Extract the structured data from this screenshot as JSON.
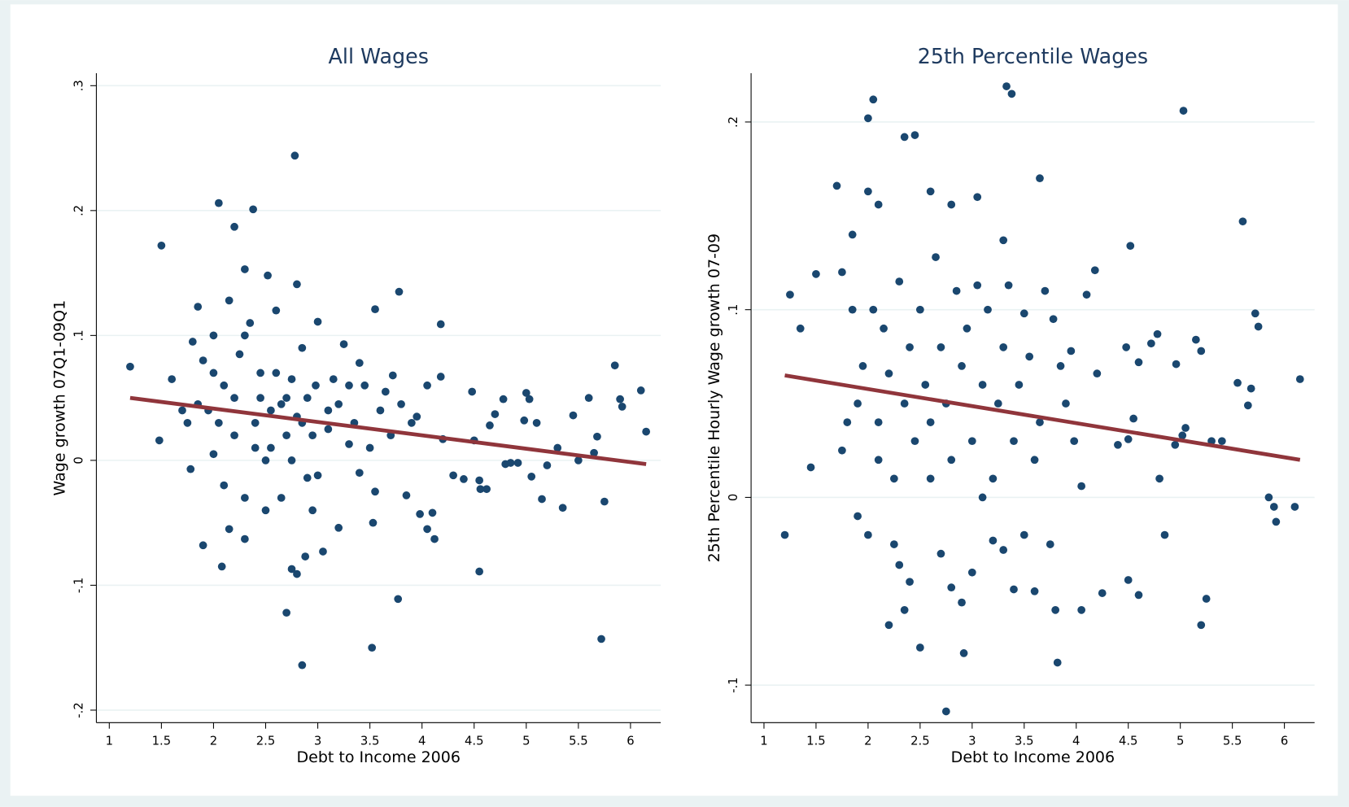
{
  "chart_data": [
    {
      "type": "scatter",
      "title": "All Wages",
      "xlabel": "Debt to Income 2006",
      "ylabel": "Wage growth 07Q1-09Q1",
      "xlim": [
        0.876,
        6.29
      ],
      "ylim": [
        -0.21,
        0.31
      ],
      "xticks": [
        1,
        1.5,
        2,
        2.5,
        3,
        3.5,
        4,
        4.5,
        5,
        5.5,
        6
      ],
      "yticks": [
        {
          "value": -0.2,
          "label": "-.2"
        },
        {
          "value": -0.1,
          "label": "-.1"
        },
        0,
        {
          "value": 0.1,
          "label": ".1"
        },
        {
          "value": 0.2,
          "label": ".2"
        },
        {
          "value": 0.3,
          "label": ".3"
        }
      ],
      "grid": true,
      "series": [
        {
          "type": "scatter",
          "color": "#1a476f",
          "x": [
            1.2,
            1.5,
            1.48,
            1.6,
            2.05,
            2.38,
            2.2,
            2.78,
            2.3,
            2.52,
            2.8,
            1.85,
            2.15,
            3.55,
            3.78,
            4.18,
            1.9,
            2.08,
            2.7,
            2.85,
            3.52,
            5.72,
            4.55,
            2.8,
            2.75,
            2.88,
            3.77,
            5.85,
            6.1,
            6.15,
            5.9,
            5.92,
            5.75,
            5.6,
            5.68,
            5.65,
            5.5,
            5.45,
            5.3,
            5.35,
            5.15,
            5.1,
            5.05,
            5.2,
            4.98,
            5.0,
            5.03,
            4.8,
            4.85,
            4.92,
            4.78,
            4.65,
            4.7,
            4.62,
            4.55,
            4.5,
            4.48,
            4.56,
            4.4,
            4.3,
            4.2,
            4.12,
            4.1,
            4.05,
            3.98,
            4.18,
            4.05,
            3.95,
            3.9,
            3.85,
            3.72,
            3.65,
            3.6,
            3.55,
            3.53,
            3.45,
            3.4,
            3.35,
            3.3,
            3.25,
            3.2,
            3.15,
            3.1,
            3.05,
            3.0,
            2.98,
            2.95,
            2.9,
            2.85,
            2.8,
            2.75,
            2.7,
            2.65,
            2.6,
            2.55,
            2.5,
            2.45,
            2.4,
            2.35,
            2.3,
            2.25,
            2.2,
            2.15,
            2.1,
            2.05,
            2.0,
            1.95,
            1.9,
            1.85,
            1.8,
            1.75,
            1.7,
            1.78,
            2.0,
            2.1,
            2.3,
            2.5,
            2.6,
            2.7,
            2.9,
            3.0,
            3.1,
            3.2,
            3.3,
            3.5,
            3.7,
            3.8,
            2.4,
            2.45,
            2.55,
            2.65,
            2.75,
            2.85,
            2.95,
            3.4,
            2.2,
            2.0,
            2.3
          ],
          "values": [
            0.075,
            0.172,
            0.016,
            0.065,
            0.206,
            0.201,
            0.187,
            0.244,
            0.153,
            0.148,
            0.141,
            0.123,
            0.128,
            0.121,
            0.135,
            0.109,
            -0.068,
            -0.085,
            -0.122,
            -0.164,
            -0.15,
            -0.143,
            -0.089,
            -0.091,
            -0.087,
            -0.077,
            -0.111,
            0.076,
            0.056,
            0.023,
            0.049,
            0.043,
            -0.033,
            0.05,
            0.019,
            0.006,
            0.0,
            0.036,
            0.01,
            -0.038,
            -0.031,
            0.03,
            -0.013,
            -0.004,
            0.032,
            0.054,
            0.049,
            -0.003,
            -0.002,
            -0.002,
            0.049,
            0.028,
            0.037,
            -0.023,
            -0.016,
            0.016,
            0.055,
            -0.023,
            -0.015,
            -0.012,
            0.017,
            -0.063,
            -0.042,
            -0.055,
            -0.043,
            0.067,
            0.06,
            0.035,
            0.03,
            -0.028,
            0.068,
            0.055,
            0.04,
            -0.025,
            -0.05,
            0.06,
            0.078,
            0.03,
            0.013,
            0.093,
            -0.054,
            0.065,
            0.04,
            -0.073,
            0.111,
            0.06,
            0.02,
            -0.014,
            0.09,
            0.035,
            0.0,
            0.05,
            -0.03,
            0.12,
            0.04,
            -0.04,
            0.07,
            0.01,
            0.11,
            -0.063,
            0.085,
            0.02,
            -0.055,
            0.06,
            0.03,
            0.1,
            0.04,
            0.08,
            0.045,
            0.095,
            0.03,
            0.04,
            -0.007,
            0.005,
            -0.02,
            -0.03,
            0.0,
            0.07,
            0.02,
            0.05,
            -0.012,
            0.025,
            0.045,
            0.06,
            0.01,
            0.02,
            0.045,
            0.03,
            0.05,
            0.01,
            0.045,
            0.065,
            0.03,
            -0.04,
            -0.01,
            0.05,
            0.07,
            0.1
          ]
        },
        {
          "type": "line",
          "color": "#90353b",
          "x": [
            1.2,
            6.15
          ],
          "values": [
            0.05,
            -0.003
          ]
        }
      ]
    },
    {
      "type": "scatter",
      "title": "25th Percentile Wages",
      "xlabel": "Debt to Income 2006",
      "ylabel": "25th Percentile Hourly Wage growth 07-09",
      "xlim": [
        0.876,
        6.29
      ],
      "ylim": [
        -0.12,
        0.226
      ],
      "xticks": [
        1,
        1.5,
        2,
        2.5,
        3,
        3.5,
        4,
        4.5,
        5,
        5.5,
        6
      ],
      "yticks": [
        {
          "value": -0.1,
          "label": "-.1"
        },
        0,
        {
          "value": 0.1,
          "label": ".1"
        },
        {
          "value": 0.2,
          "label": ".2"
        }
      ],
      "grid": true,
      "series": [
        {
          "type": "scatter",
          "color": "#1a476f",
          "x": [
            1.2,
            1.25,
            1.35,
            1.45,
            1.5,
            1.7,
            1.75,
            1.85,
            1.9,
            2.0,
            2.05,
            2.35,
            2.45,
            3.33,
            3.38,
            5.03,
            3.65,
            5.6,
            2.0,
            2.1,
            2.6,
            2.8,
            3.05,
            4.52,
            3.3,
            2.2,
            2.5,
            2.75,
            2.92,
            3.82,
            5.2,
            5.25,
            4.6,
            4.5,
            4.25,
            4.05,
            3.8,
            3.6,
            3.5,
            3.4,
            3.3,
            3.2,
            3.1,
            3.0,
            2.9,
            2.8,
            2.7,
            2.6,
            2.4,
            2.35,
            2.3,
            2.25,
            2.1,
            2.0,
            5.85,
            5.9,
            5.92,
            6.1,
            6.15,
            5.75,
            5.72,
            5.68,
            5.65,
            5.55,
            5.4,
            5.3,
            5.2,
            5.15,
            5.05,
            5.02,
            4.95,
            4.96,
            4.85,
            4.8,
            4.78,
            4.72,
            4.6,
            4.55,
            4.5,
            4.48,
            4.4,
            4.2,
            4.18,
            4.1,
            4.05,
            3.98,
            3.95,
            3.9,
            3.85,
            3.78,
            3.75,
            3.7,
            3.65,
            3.6,
            3.55,
            3.5,
            3.45,
            3.4,
            3.35,
            3.3,
            3.25,
            3.2,
            3.15,
            3.1,
            3.05,
            3.0,
            2.95,
            2.9,
            2.85,
            2.8,
            2.75,
            2.7,
            2.65,
            2.6,
            2.55,
            2.5,
            2.45,
            2.4,
            2.35,
            2.3,
            2.25,
            2.2,
            2.15,
            2.1,
            2.05,
            1.95,
            1.9,
            1.85,
            1.8,
            1.75
          ],
          "values": [
            -0.02,
            0.108,
            0.09,
            0.016,
            0.119,
            0.166,
            0.12,
            0.14,
            -0.01,
            0.202,
            0.212,
            0.192,
            0.193,
            0.219,
            0.215,
            0.206,
            0.17,
            0.147,
            0.163,
            0.156,
            0.163,
            0.156,
            0.16,
            0.134,
            0.137,
            -0.068,
            -0.08,
            -0.114,
            -0.083,
            -0.088,
            -0.068,
            -0.054,
            -0.052,
            -0.044,
            -0.051,
            -0.06,
            -0.06,
            -0.05,
            -0.02,
            -0.049,
            -0.028,
            -0.023,
            0.0,
            -0.04,
            -0.056,
            -0.048,
            -0.03,
            0.01,
            -0.045,
            -0.06,
            -0.036,
            -0.025,
            0.02,
            -0.02,
            0.0,
            -0.005,
            -0.013,
            -0.005,
            0.063,
            0.091,
            0.098,
            0.058,
            0.049,
            0.061,
            0.03,
            0.03,
            0.078,
            0.084,
            0.037,
            0.033,
            0.028,
            0.071,
            -0.02,
            0.01,
            0.087,
            0.082,
            0.072,
            0.042,
            0.031,
            0.08,
            0.028,
            0.066,
            0.121,
            0.108,
            0.006,
            0.03,
            0.078,
            0.05,
            0.07,
            0.095,
            -0.025,
            0.11,
            0.04,
            0.02,
            0.075,
            0.098,
            0.06,
            0.03,
            0.113,
            0.08,
            0.05,
            0.01,
            0.1,
            0.06,
            0.113,
            0.03,
            0.09,
            0.07,
            0.11,
            0.02,
            0.05,
            0.08,
            0.128,
            0.04,
            0.06,
            0.1,
            0.03,
            0.08,
            0.05,
            0.115,
            0.01,
            0.066,
            0.09,
            0.04,
            0.1,
            0.07,
            0.05,
            0.1,
            0.04,
            0.025
          ]
        },
        {
          "type": "line",
          "color": "#90353b",
          "x": [
            1.2,
            6.15
          ],
          "values": [
            0.065,
            0.02
          ]
        }
      ]
    }
  ]
}
